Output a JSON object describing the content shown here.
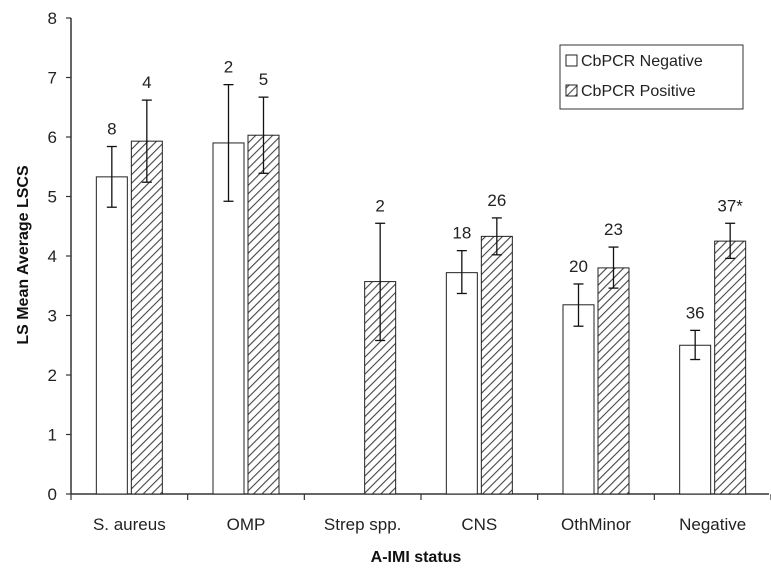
{
  "chart_data": {
    "type": "bar",
    "title": "",
    "xlabel": "A-IMI status",
    "ylabel": "LS Mean Average LSCS",
    "ylim": [
      0,
      8
    ],
    "yticks": [
      "0",
      "1",
      "2",
      "3",
      "4",
      "5",
      "6",
      "7",
      "8"
    ],
    "grid": false,
    "legend_position": "top-right",
    "categories": [
      "S. aureus",
      "OMP",
      "Strep spp.",
      "CNS",
      "OthMinor",
      "Negative"
    ],
    "series": [
      {
        "name": "CbPCR Negative",
        "pattern": "open",
        "values": [
          5.33,
          5.9,
          null,
          3.72,
          3.18,
          2.5
        ],
        "err_low": [
          4.82,
          4.92,
          null,
          3.37,
          2.82,
          2.26
        ],
        "err_high": [
          5.84,
          6.88,
          null,
          4.09,
          3.53,
          2.75
        ],
        "labels": [
          "8",
          "2",
          "",
          "18",
          "20",
          "36"
        ]
      },
      {
        "name": "CbPCR Positive",
        "pattern": "hatched",
        "values": [
          5.93,
          6.03,
          3.57,
          4.33,
          3.8,
          4.25
        ],
        "err_low": [
          5.24,
          5.39,
          2.58,
          4.02,
          3.46,
          3.96
        ],
        "err_high": [
          6.62,
          6.67,
          4.55,
          4.64,
          4.15,
          4.55
        ],
        "labels": [
          "4",
          "5",
          "2",
          "26",
          "23",
          "37*"
        ]
      }
    ]
  },
  "colors": {
    "axis": "#333333",
    "bar_stroke": "#222222",
    "open_fill": "#ffffff",
    "hatch": "#444444",
    "error_bar": "#111111"
  }
}
